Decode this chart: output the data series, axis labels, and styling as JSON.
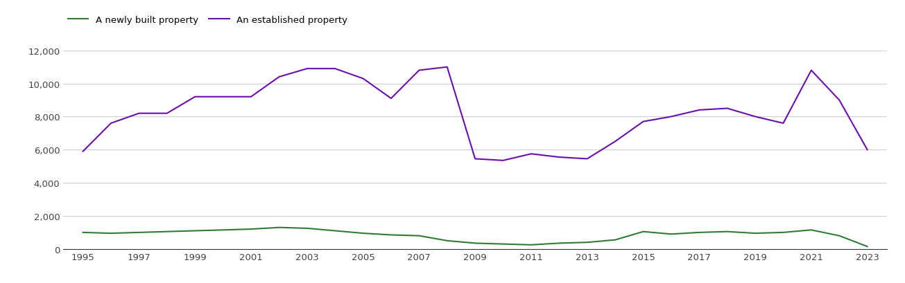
{
  "years": [
    1995,
    1996,
    1997,
    1998,
    1999,
    2000,
    2001,
    2002,
    2003,
    2004,
    2005,
    2006,
    2007,
    2008,
    2009,
    2010,
    2011,
    2012,
    2013,
    2014,
    2015,
    2016,
    2017,
    2018,
    2019,
    2020,
    2021,
    2022,
    2023
  ],
  "new_homes": [
    1000,
    950,
    1000,
    1050,
    1100,
    1150,
    1200,
    1300,
    1250,
    1100,
    950,
    850,
    800,
    500,
    350,
    300,
    250,
    350,
    400,
    550,
    1050,
    900,
    1000,
    1050,
    950,
    1000,
    1150,
    800,
    150
  ],
  "established_homes": [
    5900,
    7600,
    8200,
    8200,
    9200,
    9200,
    9200,
    10400,
    10900,
    10900,
    10300,
    9100,
    10800,
    11000,
    5450,
    5350,
    5750,
    5550,
    5450,
    6500,
    7700,
    8000,
    8400,
    8500,
    8000,
    7600,
    10800,
    9000,
    6000
  ],
  "new_color": "#2e7d32",
  "established_color": "#6a0dad",
  "legend_new": "A newly built property",
  "legend_established": "An established property",
  "ylim": [
    0,
    12000
  ],
  "yticks": [
    0,
    2000,
    4000,
    6000,
    8000,
    10000,
    12000
  ],
  "background_color": "#ffffff",
  "grid_color": "#d0d0d0",
  "line_width": 1.5,
  "xticks": [
    1995,
    1997,
    1999,
    2001,
    2003,
    2005,
    2007,
    2009,
    2011,
    2013,
    2015,
    2017,
    2019,
    2021,
    2023
  ]
}
